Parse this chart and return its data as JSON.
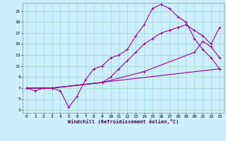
{
  "xlabel": "Windchill (Refroidissement éolien,°C)",
  "bg_color": "#cceeff",
  "grid_color": "#aaddcc",
  "line_color": "#990099",
  "xlim": [
    -0.5,
    23.5
  ],
  "ylim": [
    2.5,
    22.5
  ],
  "xticks": [
    0,
    1,
    2,
    3,
    4,
    5,
    6,
    7,
    8,
    9,
    10,
    11,
    12,
    13,
    14,
    15,
    16,
    17,
    18,
    19,
    20,
    21,
    22,
    23
  ],
  "yticks": [
    3,
    5,
    7,
    9,
    11,
    13,
    15,
    17,
    19,
    21
  ],
  "curve1_x": [
    0,
    1,
    2,
    3,
    4,
    5,
    6,
    7,
    8,
    9,
    10,
    11,
    12,
    13,
    14,
    15,
    16,
    17,
    18,
    19,
    20,
    21,
    22,
    23
  ],
  "curve1_y": [
    7,
    6.5,
    7,
    7,
    6.5,
    3.5,
    5.5,
    8.5,
    10.5,
    11,
    12.5,
    13,
    14,
    16.5,
    18.5,
    21.5,
    22.2,
    21.5,
    20,
    19,
    16,
    14,
    12.5,
    10.5
  ],
  "curve2_x": [
    0,
    3,
    9,
    10,
    11,
    12,
    13,
    14,
    15,
    16,
    17,
    18,
    19,
    20,
    21,
    22,
    23
  ],
  "curve2_y": [
    7,
    7,
    8,
    9,
    10.5,
    12,
    13.5,
    15,
    16,
    17,
    17.5,
    18,
    18.5,
    17.5,
    16.5,
    15,
    18
  ],
  "curve3_x": [
    0,
    3,
    9,
    14,
    20,
    21,
    22,
    23
  ],
  "curve3_y": [
    7,
    7,
    8,
    10,
    13.5,
    15.5,
    14.5,
    12.5
  ],
  "curve4_x": [
    0,
    3,
    23
  ],
  "curve4_y": [
    7,
    7,
    10.5
  ]
}
